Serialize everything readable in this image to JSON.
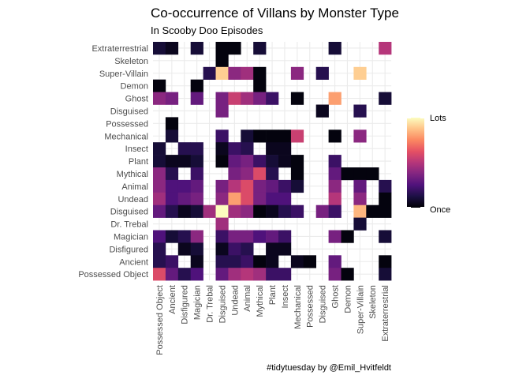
{
  "chart_data": {
    "type": "heatmap",
    "title": "Co-occurrence of Villans by Monster Type",
    "subtitle": "In Scooby Doo Episodes",
    "caption": "#tidytuesday by @Emil_Hvitfeldt",
    "x_categories": [
      "Possessed Object",
      "Ancient",
      "Disfigured",
      "Magician",
      "Dr. Trebal",
      "Disguised",
      "Undead",
      "Animal",
      "Mythical",
      "Plant",
      "Insect",
      "Mechanical",
      "Possessed",
      "Disguised",
      "Ghost",
      "Demon",
      "Super-Villain",
      "Skeleton",
      "Extraterrestrial"
    ],
    "y_categories": [
      "Extraterrestrial",
      "Skeleton",
      "Super-Villain",
      "Demon",
      "Ghost",
      "Disguised",
      "Possessed",
      "Mechanical",
      "Insect",
      "Plant",
      "Mythical",
      "Animal",
      "Undead",
      "Disguised",
      "Dr. Trebal",
      "Magician",
      "Disfigured",
      "Ancient",
      "Possessed Object"
    ],
    "value_scale": "0 = Once, 1 = Lots",
    "legend": {
      "high_label": "Lots",
      "low_label": "Once",
      "position": "right"
    },
    "grid": true,
    "values": [
      [
        0.1,
        0.05,
        null,
        0.1,
        null,
        0.02,
        0.02,
        null,
        0.1,
        null,
        null,
        null,
        null,
        null,
        0.1,
        null,
        null,
        null,
        0.5
      ],
      [
        null,
        null,
        null,
        null,
        null,
        0.02,
        null,
        null,
        null,
        null,
        null,
        null,
        null,
        null,
        null,
        null,
        null,
        null,
        null
      ],
      [
        null,
        null,
        null,
        null,
        0.15,
        0.9,
        0.4,
        0.45,
        0.02,
        null,
        null,
        0.4,
        null,
        0.15,
        null,
        null,
        0.9,
        null,
        null
      ],
      [
        0.02,
        null,
        null,
        0.02,
        null,
        null,
        null,
        null,
        0.02,
        null,
        null,
        null,
        null,
        null,
        null,
        null,
        null,
        null,
        null
      ],
      [
        0.4,
        0.35,
        null,
        0.3,
        null,
        0.35,
        0.55,
        0.45,
        0.35,
        0.2,
        null,
        0.02,
        null,
        null,
        0.8,
        null,
        null,
        null,
        0.1
      ],
      [
        null,
        null,
        null,
        null,
        null,
        0.35,
        null,
        null,
        null,
        null,
        null,
        null,
        null,
        0.05,
        null,
        null,
        0.15,
        null,
        null
      ],
      [
        null,
        0.02,
        null,
        null,
        null,
        null,
        null,
        null,
        null,
        null,
        null,
        null,
        null,
        null,
        null,
        null,
        null,
        null,
        null
      ],
      [
        null,
        0.1,
        null,
        null,
        null,
        0.2,
        null,
        0.1,
        0.02,
        0.02,
        0.02,
        0.55,
        null,
        null,
        0.02,
        null,
        0.4,
        null,
        null
      ],
      [
        0.1,
        null,
        0.15,
        0.15,
        null,
        0.05,
        0.2,
        0.15,
        null,
        0.05,
        0.05,
        null,
        null,
        null,
        null,
        null,
        null,
        null,
        null
      ],
      [
        0.1,
        0.05,
        0.05,
        0.1,
        null,
        0.02,
        0.3,
        0.35,
        0.2,
        0.1,
        0.05,
        0.02,
        null,
        null,
        0.2,
        null,
        null,
        null,
        null
      ],
      [
        0.4,
        0.15,
        null,
        0.2,
        null,
        null,
        0.35,
        0.4,
        0.6,
        0.15,
        null,
        0.02,
        null,
        null,
        0.3,
        0.02,
        0.02,
        0.02,
        null
      ],
      [
        0.4,
        0.25,
        0.25,
        0.3,
        null,
        0.35,
        0.5,
        0.6,
        0.35,
        0.3,
        0.2,
        0.1,
        null,
        null,
        0.4,
        null,
        0.3,
        null,
        0.15
      ],
      [
        0.45,
        0.25,
        0.3,
        0.35,
        null,
        0.4,
        0.8,
        0.6,
        0.35,
        0.25,
        0.25,
        null,
        null,
        null,
        0.5,
        null,
        0.4,
        null,
        0.02
      ],
      [
        0.3,
        0.15,
        0.05,
        0.1,
        0.45,
        1.0,
        0.45,
        0.4,
        0.02,
        0.05,
        0.15,
        0.2,
        null,
        0.35,
        0.2,
        null,
        0.85,
        0.02,
        0.02
      ],
      [
        null,
        null,
        null,
        null,
        null,
        0.45,
        null,
        null,
        null,
        null,
        null,
        null,
        null,
        null,
        null,
        null,
        0.1,
        null,
        null
      ],
      [
        0.25,
        0.1,
        0.15,
        0.4,
        null,
        0.2,
        0.35,
        0.35,
        0.25,
        0.3,
        0.2,
        null,
        null,
        null,
        0.35,
        0.02,
        null,
        null,
        0.1
      ],
      [
        0.15,
        null,
        0.05,
        0.1,
        null,
        0.05,
        0.2,
        0.15,
        null,
        0.05,
        0.05,
        null,
        null,
        null,
        null,
        null,
        null,
        null,
        null
      ],
      [
        0.15,
        0.2,
        null,
        0.05,
        null,
        0.15,
        0.15,
        0.2,
        0.02,
        0.05,
        null,
        0.05,
        0.02,
        null,
        0.3,
        null,
        null,
        null,
        0.02
      ],
      [
        0.6,
        0.3,
        0.15,
        0.25,
        null,
        0.3,
        0.45,
        0.5,
        0.45,
        0.2,
        0.2,
        null,
        null,
        null,
        0.35,
        0.02,
        null,
        null,
        0.1
      ]
    ]
  }
}
